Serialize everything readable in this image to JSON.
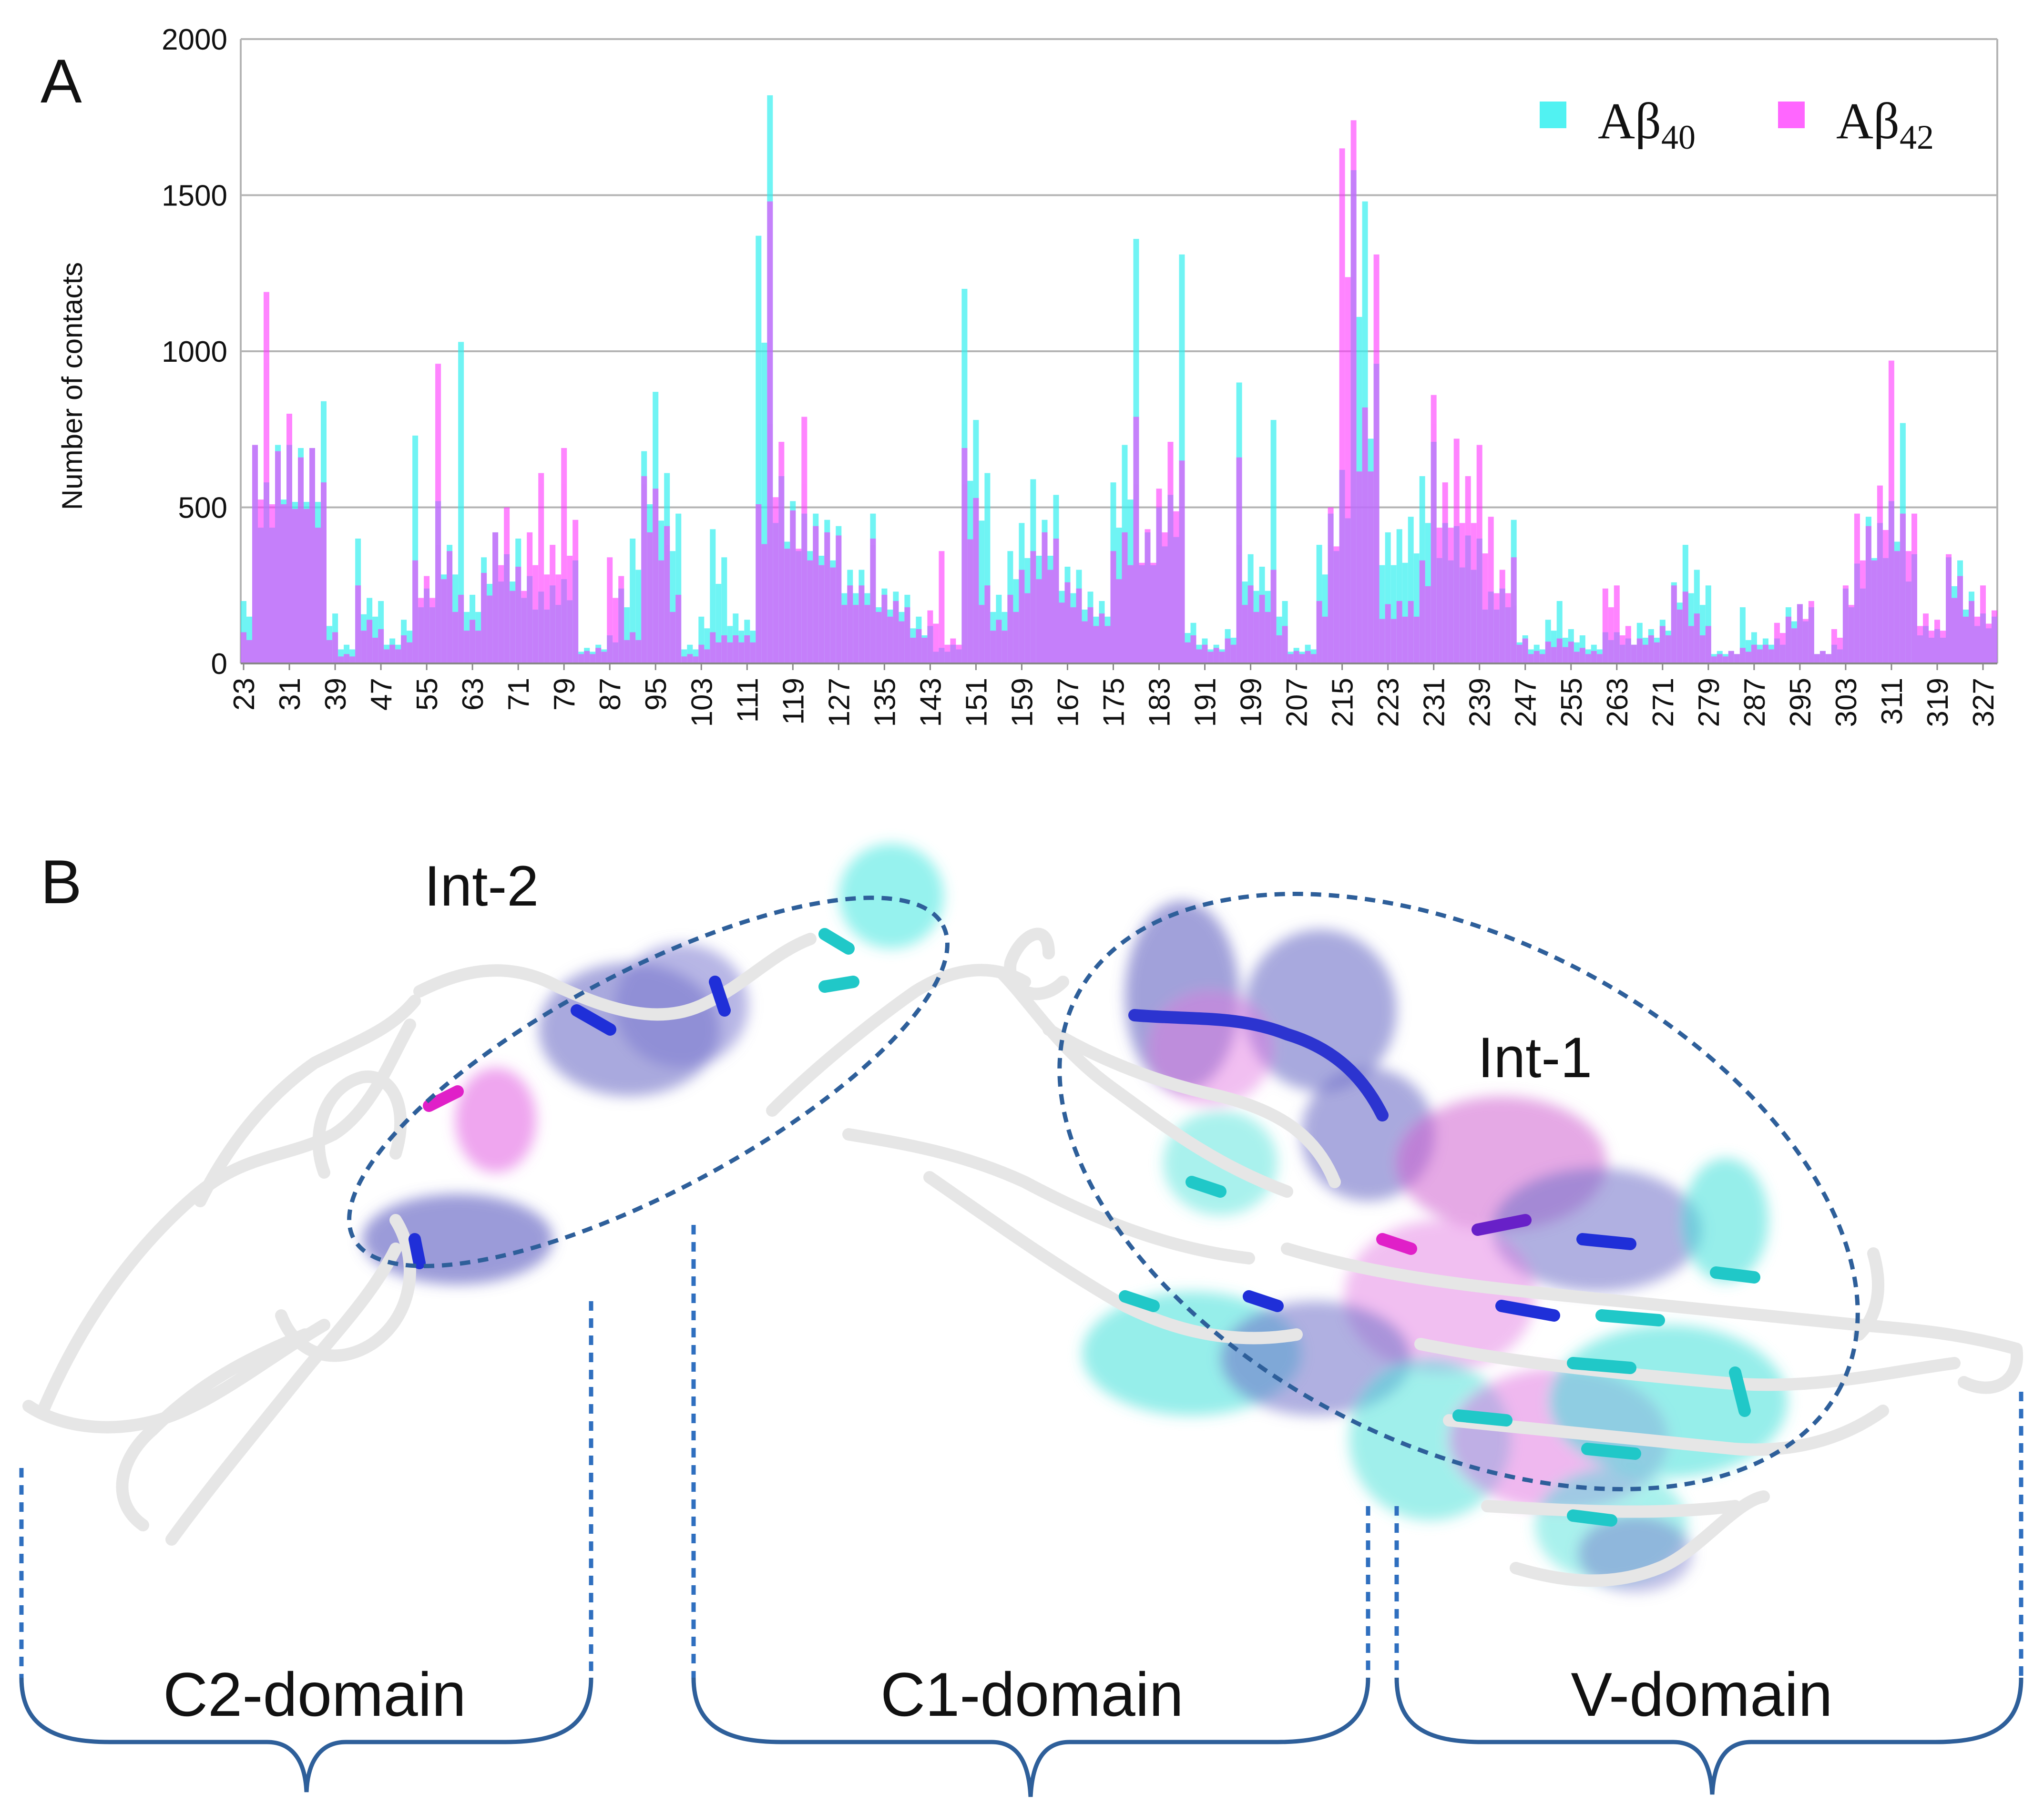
{
  "panel_a_label": "A",
  "panel_b_label": "B",
  "colors": {
    "ab40": "#33f0f0",
    "ab42": "#ff33ff",
    "grid": "#b4b4b4",
    "bracket": "#2e5f9a"
  },
  "chart_data": {
    "type": "bar",
    "title": "",
    "xlabel": "",
    "ylabel": "Number of contacts",
    "ylim": [
      0,
      2000
    ],
    "yticks": [
      "0",
      "500",
      "1000",
      "1500",
      "2000"
    ],
    "xtick_labels": [
      "23",
      "31",
      "39",
      "47",
      "55",
      "63",
      "71",
      "79",
      "87",
      "95",
      "103",
      "111",
      "119",
      "127",
      "135",
      "143",
      "151",
      "159",
      "167",
      "175",
      "183",
      "191",
      "199",
      "207",
      "215",
      "223",
      "231",
      "239",
      "247",
      "255",
      "263",
      "271",
      "279",
      "287",
      "295",
      "303",
      "311",
      "319",
      "327"
    ],
    "x_start": 23,
    "x_end": 329,
    "grid": true,
    "legend_position": "top-right",
    "series": [
      {
        "name": "Aβ40",
        "label_main": "Aβ",
        "label_sub": "40",
        "peaks": [
          [
            23,
            200
          ],
          [
            25,
            700
          ],
          [
            27,
            580
          ],
          [
            29,
            700
          ],
          [
            31,
            700
          ],
          [
            33,
            690
          ],
          [
            35,
            690
          ],
          [
            37,
            840
          ],
          [
            39,
            160
          ],
          [
            41,
            60
          ],
          [
            43,
            400
          ],
          [
            45,
            210
          ],
          [
            47,
            200
          ],
          [
            49,
            80
          ],
          [
            51,
            140
          ],
          [
            53,
            730
          ],
          [
            55,
            240
          ],
          [
            57,
            520
          ],
          [
            59,
            380
          ],
          [
            61,
            1030
          ],
          [
            63,
            220
          ],
          [
            65,
            340
          ],
          [
            67,
            420
          ],
          [
            69,
            350
          ],
          [
            71,
            400
          ],
          [
            73,
            280
          ],
          [
            75,
            230
          ],
          [
            77,
            250
          ],
          [
            79,
            270
          ],
          [
            81,
            330
          ],
          [
            83,
            50
          ],
          [
            85,
            60
          ],
          [
            87,
            90
          ],
          [
            89,
            240
          ],
          [
            91,
            400
          ],
          [
            93,
            680
          ],
          [
            95,
            870
          ],
          [
            97,
            610
          ],
          [
            99,
            480
          ],
          [
            101,
            60
          ],
          [
            103,
            150
          ],
          [
            105,
            430
          ],
          [
            107,
            340
          ],
          [
            109,
            160
          ],
          [
            111,
            140
          ],
          [
            113,
            1370
          ],
          [
            115,
            1820
          ],
          [
            117,
            600
          ],
          [
            119,
            520
          ],
          [
            121,
            480
          ],
          [
            123,
            480
          ],
          [
            125,
            460
          ],
          [
            127,
            440
          ],
          [
            129,
            300
          ],
          [
            131,
            300
          ],
          [
            133,
            480
          ],
          [
            135,
            240
          ],
          [
            137,
            230
          ],
          [
            139,
            220
          ],
          [
            141,
            150
          ],
          [
            143,
            120
          ],
          [
            145,
            50
          ],
          [
            147,
            60
          ],
          [
            149,
            1200
          ],
          [
            151,
            780
          ],
          [
            153,
            610
          ],
          [
            155,
            220
          ],
          [
            157,
            360
          ],
          [
            159,
            450
          ],
          [
            161,
            590
          ],
          [
            163,
            460
          ],
          [
            165,
            540
          ],
          [
            167,
            310
          ],
          [
            169,
            300
          ],
          [
            171,
            230
          ],
          [
            173,
            200
          ],
          [
            175,
            580
          ],
          [
            177,
            700
          ],
          [
            179,
            1360
          ],
          [
            181,
            420
          ],
          [
            183,
            500
          ],
          [
            185,
            540
          ],
          [
            187,
            1310
          ],
          [
            189,
            130
          ],
          [
            191,
            80
          ],
          [
            193,
            60
          ],
          [
            195,
            110
          ],
          [
            197,
            900
          ],
          [
            199,
            350
          ],
          [
            201,
            310
          ],
          [
            203,
            780
          ],
          [
            205,
            200
          ],
          [
            207,
            50
          ],
          [
            209,
            60
          ],
          [
            211,
            380
          ],
          [
            213,
            480
          ],
          [
            215,
            620
          ],
          [
            217,
            1580
          ],
          [
            219,
            1480
          ],
          [
            221,
            960
          ],
          [
            223,
            420
          ],
          [
            225,
            430
          ],
          [
            227,
            470
          ],
          [
            229,
            600
          ],
          [
            231,
            710
          ],
          [
            233,
            450
          ],
          [
            235,
            440
          ],
          [
            237,
            410
          ],
          [
            239,
            400
          ],
          [
            241,
            230
          ],
          [
            243,
            240
          ],
          [
            245,
            460
          ],
          [
            247,
            90
          ],
          [
            249,
            60
          ],
          [
            251,
            140
          ],
          [
            253,
            200
          ],
          [
            255,
            110
          ],
          [
            257,
            90
          ],
          [
            259,
            60
          ],
          [
            261,
            100
          ],
          [
            263,
            100
          ],
          [
            265,
            80
          ],
          [
            267,
            130
          ],
          [
            269,
            110
          ],
          [
            271,
            140
          ],
          [
            273,
            260
          ],
          [
            275,
            380
          ],
          [
            277,
            300
          ],
          [
            279,
            250
          ],
          [
            281,
            40
          ],
          [
            283,
            40
          ],
          [
            285,
            180
          ],
          [
            287,
            100
          ],
          [
            289,
            80
          ],
          [
            291,
            80
          ],
          [
            293,
            180
          ],
          [
            295,
            190
          ],
          [
            297,
            180
          ],
          [
            299,
            40
          ],
          [
            301,
            60
          ],
          [
            303,
            240
          ],
          [
            305,
            320
          ],
          [
            307,
            470
          ],
          [
            309,
            450
          ],
          [
            311,
            520
          ],
          [
            313,
            770
          ],
          [
            315,
            350
          ],
          [
            317,
            120
          ],
          [
            319,
            110
          ],
          [
            321,
            340
          ],
          [
            323,
            330
          ],
          [
            325,
            230
          ],
          [
            327,
            160
          ],
          [
            329,
            150
          ]
        ]
      },
      {
        "name": "Aβ42",
        "label_main": "Aβ",
        "label_sub": "42",
        "peaks": [
          [
            23,
            100
          ],
          [
            25,
            700
          ],
          [
            27,
            1190
          ],
          [
            29,
            680
          ],
          [
            31,
            800
          ],
          [
            33,
            660
          ],
          [
            35,
            690
          ],
          [
            37,
            580
          ],
          [
            39,
            100
          ],
          [
            41,
            30
          ],
          [
            43,
            250
          ],
          [
            45,
            140
          ],
          [
            47,
            110
          ],
          [
            49,
            60
          ],
          [
            51,
            90
          ],
          [
            53,
            330
          ],
          [
            55,
            280
          ],
          [
            57,
            960
          ],
          [
            59,
            360
          ],
          [
            61,
            220
          ],
          [
            63,
            140
          ],
          [
            65,
            290
          ],
          [
            67,
            420
          ],
          [
            69,
            500
          ],
          [
            71,
            310
          ],
          [
            73,
            420
          ],
          [
            75,
            610
          ],
          [
            77,
            380
          ],
          [
            79,
            690
          ],
          [
            81,
            460
          ],
          [
            83,
            40
          ],
          [
            85,
            50
          ],
          [
            87,
            340
          ],
          [
            89,
            280
          ],
          [
            91,
            100
          ],
          [
            93,
            600
          ],
          [
            95,
            560
          ],
          [
            97,
            440
          ],
          [
            99,
            220
          ],
          [
            101,
            30
          ],
          [
            103,
            60
          ],
          [
            105,
            100
          ],
          [
            107,
            90
          ],
          [
            109,
            90
          ],
          [
            111,
            90
          ],
          [
            113,
            510
          ],
          [
            115,
            1480
          ],
          [
            117,
            710
          ],
          [
            119,
            490
          ],
          [
            121,
            790
          ],
          [
            123,
            440
          ],
          [
            125,
            420
          ],
          [
            127,
            410
          ],
          [
            129,
            250
          ],
          [
            131,
            250
          ],
          [
            133,
            400
          ],
          [
            135,
            220
          ],
          [
            137,
            200
          ],
          [
            139,
            180
          ],
          [
            141,
            110
          ],
          [
            143,
            170
          ],
          [
            145,
            360
          ],
          [
            147,
            80
          ],
          [
            149,
            690
          ],
          [
            151,
            530
          ],
          [
            153,
            250
          ],
          [
            155,
            140
          ],
          [
            157,
            220
          ],
          [
            159,
            300
          ],
          [
            161,
            360
          ],
          [
            163,
            420
          ],
          [
            165,
            400
          ],
          [
            167,
            260
          ],
          [
            169,
            240
          ],
          [
            171,
            180
          ],
          [
            173,
            160
          ],
          [
            175,
            360
          ],
          [
            177,
            420
          ],
          [
            179,
            790
          ],
          [
            181,
            430
          ],
          [
            183,
            560
          ],
          [
            185,
            710
          ],
          [
            187,
            650
          ],
          [
            189,
            90
          ],
          [
            191,
            60
          ],
          [
            193,
            50
          ],
          [
            195,
            80
          ],
          [
            197,
            660
          ],
          [
            199,
            250
          ],
          [
            201,
            220
          ],
          [
            203,
            300
          ],
          [
            205,
            120
          ],
          [
            207,
            40
          ],
          [
            209,
            40
          ],
          [
            211,
            200
          ],
          [
            213,
            500
          ],
          [
            215,
            1650
          ],
          [
            217,
            1740
          ],
          [
            219,
            820
          ],
          [
            221,
            1310
          ],
          [
            223,
            190
          ],
          [
            225,
            200
          ],
          [
            227,
            200
          ],
          [
            229,
            330
          ],
          [
            231,
            860
          ],
          [
            233,
            580
          ],
          [
            235,
            720
          ],
          [
            237,
            600
          ],
          [
            239,
            700
          ],
          [
            241,
            470
          ],
          [
            243,
            300
          ],
          [
            245,
            340
          ],
          [
            247,
            80
          ],
          [
            249,
            40
          ],
          [
            251,
            70
          ],
          [
            253,
            80
          ],
          [
            255,
            70
          ],
          [
            257,
            50
          ],
          [
            259,
            40
          ],
          [
            261,
            240
          ],
          [
            263,
            250
          ],
          [
            265,
            120
          ],
          [
            267,
            80
          ],
          [
            269,
            90
          ],
          [
            271,
            120
          ],
          [
            273,
            250
          ],
          [
            275,
            230
          ],
          [
            277,
            160
          ],
          [
            279,
            120
          ],
          [
            281,
            30
          ],
          [
            283,
            40
          ],
          [
            285,
            50
          ],
          [
            287,
            60
          ],
          [
            289,
            60
          ],
          [
            291,
            130
          ],
          [
            293,
            150
          ],
          [
            295,
            190
          ],
          [
            297,
            200
          ],
          [
            299,
            40
          ],
          [
            301,
            110
          ],
          [
            303,
            250
          ],
          [
            305,
            480
          ],
          [
            307,
            440
          ],
          [
            309,
            570
          ],
          [
            311,
            970
          ],
          [
            313,
            480
          ],
          [
            315,
            480
          ],
          [
            317,
            160
          ],
          [
            319,
            140
          ],
          [
            321,
            350
          ],
          [
            323,
            280
          ],
          [
            325,
            200
          ],
          [
            327,
            250
          ],
          [
            329,
            170
          ]
        ]
      }
    ]
  },
  "panel_b": {
    "int2_label": "Int-2",
    "int1_label": "Int-1",
    "domains": [
      "C2-domain",
      "C1-domain",
      "V-domain"
    ]
  }
}
